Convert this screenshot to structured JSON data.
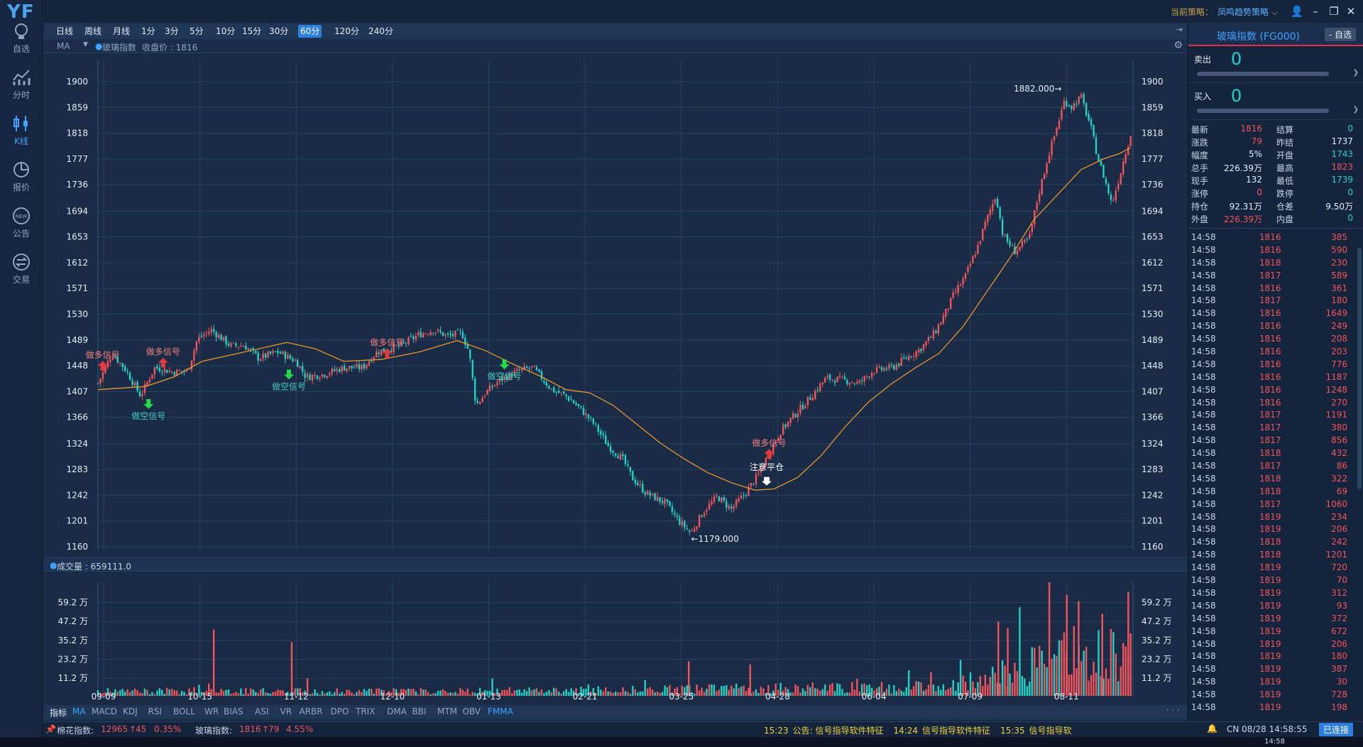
{
  "logo": "YF",
  "nav": [
    {
      "label": "自选",
      "icon": "lightbulb-icon"
    },
    {
      "label": "分时",
      "icon": "line-chart-icon"
    },
    {
      "label": "K线",
      "icon": "candlestick-icon",
      "active": true
    },
    {
      "label": "报价",
      "icon": "pie-chart-icon"
    },
    {
      "label": "公告",
      "icon": "new-badge-icon"
    },
    {
      "label": "交易",
      "icon": "exchange-icon"
    }
  ],
  "topbar": {
    "strategy_label": "当前策略：",
    "strategy_value": "凤鸣趋势策略"
  },
  "periods": [
    "日线",
    "周线",
    "月线",
    "1分",
    "3分",
    "5分",
    "10分",
    "15分",
    "30分",
    "60分",
    "120分",
    "240分"
  ],
  "selected_period": "60分",
  "subbar": {
    "indicator": "MA",
    "series": "玻璃指数",
    "close_label": "收盘价 : 1816"
  },
  "chart_data": [
    {
      "type": "candlestick",
      "series": "玻璃指数 60分K线",
      "ylim": [
        1160,
        1900
      ],
      "yticks": [
        1900,
        1859,
        1818,
        1777,
        1736,
        1694,
        1653,
        1612,
        1571,
        1530,
        1489,
        1448,
        1407,
        1366,
        1324,
        1283,
        1242,
        1201,
        1160
      ],
      "xticks": [
        "09-09",
        "10-15",
        "11-12",
        "12-10",
        "01-13",
        "02-21",
        "03-25",
        "04-28",
        "06-04",
        "07-09",
        "08-11"
      ],
      "close_path": [
        [
          0,
          1420
        ],
        [
          0.3,
          1468
        ],
        [
          0.6,
          1440
        ],
        [
          0.9,
          1400
        ],
        [
          1.2,
          1445
        ],
        [
          1.6,
          1438
        ],
        [
          1.9,
          1440
        ],
        [
          2.1,
          1490
        ],
        [
          2.4,
          1505
        ],
        [
          2.8,
          1480
        ],
        [
          3.1,
          1480
        ],
        [
          3.4,
          1460
        ],
        [
          3.8,
          1470
        ],
        [
          4.2,
          1455
        ],
        [
          4.4,
          1430
        ],
        [
          4.8,
          1435
        ],
        [
          5.2,
          1445
        ],
        [
          5.6,
          1445
        ],
        [
          5.9,
          1470
        ],
        [
          6.4,
          1480
        ],
        [
          6.8,
          1498
        ],
        [
          7.1,
          1505
        ],
        [
          7.4,
          1495
        ],
        [
          7.7,
          1500
        ],
        [
          7.85,
          1470
        ],
        [
          8.0,
          1385
        ],
        [
          8.2,
          1405
        ],
        [
          8.5,
          1425
        ],
        [
          8.9,
          1440
        ],
        [
          9.2,
          1445
        ],
        [
          9.6,
          1410
        ],
        [
          9.9,
          1400
        ],
        [
          10.2,
          1380
        ],
        [
          10.5,
          1355
        ],
        [
          10.8,
          1320
        ],
        [
          11.1,
          1300
        ],
        [
          11.3,
          1270
        ],
        [
          11.6,
          1245
        ],
        [
          12.0,
          1230
        ],
        [
          12.3,
          1200
        ],
        [
          12.55,
          1182
        ],
        [
          12.8,
          1215
        ],
        [
          13.1,
          1240
        ],
        [
          13.4,
          1220
        ],
        [
          13.7,
          1245
        ],
        [
          14.0,
          1278
        ],
        [
          14.2,
          1310
        ],
        [
          14.45,
          1345
        ],
        [
          14.8,
          1375
        ],
        [
          15.1,
          1400
        ],
        [
          15.4,
          1428
        ],
        [
          15.8,
          1425
        ],
        [
          16.1,
          1420
        ],
        [
          16.4,
          1440
        ],
        [
          16.8,
          1445
        ],
        [
          17.1,
          1460
        ],
        [
          17.4,
          1475
        ],
        [
          17.7,
          1500
        ],
        [
          17.95,
          1535
        ],
        [
          18.1,
          1560
        ],
        [
          18.35,
          1590
        ],
        [
          18.6,
          1635
        ],
        [
          18.8,
          1680
        ],
        [
          19.0,
          1720
        ],
        [
          19.15,
          1655
        ],
        [
          19.4,
          1630
        ],
        [
          19.7,
          1650
        ],
        [
          19.9,
          1720
        ],
        [
          20.1,
          1780
        ],
        [
          20.3,
          1830
        ],
        [
          20.45,
          1870
        ],
        [
          20.6,
          1860
        ],
        [
          20.8,
          1876
        ],
        [
          21.0,
          1830
        ],
        [
          21.15,
          1780
        ],
        [
          21.3,
          1745
        ],
        [
          21.45,
          1705
        ],
        [
          21.6,
          1745
        ],
        [
          21.75,
          1790
        ],
        [
          21.85,
          1816
        ]
      ],
      "ma_path": [
        [
          0,
          1410
        ],
        [
          1.0,
          1415
        ],
        [
          1.6,
          1430
        ],
        [
          2.2,
          1455
        ],
        [
          3.1,
          1470
        ],
        [
          4.0,
          1485
        ],
        [
          4.6,
          1475
        ],
        [
          5.2,
          1455
        ],
        [
          6.0,
          1458
        ],
        [
          6.8,
          1470
        ],
        [
          7.6,
          1488
        ],
        [
          8.2,
          1472
        ],
        [
          8.8,
          1450
        ],
        [
          9.4,
          1430
        ],
        [
          9.9,
          1410
        ],
        [
          10.4,
          1405
        ],
        [
          10.9,
          1385
        ],
        [
          11.4,
          1355
        ],
        [
          11.9,
          1325
        ],
        [
          12.4,
          1300
        ],
        [
          12.9,
          1278
        ],
        [
          13.4,
          1262
        ],
        [
          13.9,
          1250
        ],
        [
          14.3,
          1252
        ],
        [
          14.8,
          1270
        ],
        [
          15.3,
          1305
        ],
        [
          15.8,
          1350
        ],
        [
          16.3,
          1390
        ],
        [
          16.8,
          1420
        ],
        [
          17.3,
          1445
        ],
        [
          17.8,
          1468
        ],
        [
          18.3,
          1510
        ],
        [
          18.8,
          1565
        ],
        [
          19.3,
          1620
        ],
        [
          19.8,
          1680
        ],
        [
          20.3,
          1720
        ],
        [
          20.8,
          1760
        ],
        [
          21.3,
          1778
        ],
        [
          21.6,
          1785
        ],
        [
          21.85,
          1795
        ]
      ],
      "annotations": [
        {
          "text": "1882.000→",
          "x": 20.45,
          "y": 1882
        },
        {
          "text": "←1179.000",
          "x": 12.55,
          "y": 1179
        },
        {
          "text": "注意平仓",
          "x": 14.15,
          "y": 1280,
          "color": "white"
        }
      ],
      "signals": [
        {
          "text": "做多信号",
          "x": 0.1,
          "y": 1440,
          "dir": "long"
        },
        {
          "text": "做空信号",
          "x": 1.07,
          "y": 1395,
          "dir": "short"
        },
        {
          "text": "做多信号",
          "x": 1.38,
          "y": 1445,
          "dir": "long"
        },
        {
          "text": "做空信号",
          "x": 4.04,
          "y": 1442,
          "dir": "short"
        },
        {
          "text": "做多信号",
          "x": 6.12,
          "y": 1460,
          "dir": "long"
        },
        {
          "text": "做空信号",
          "x": 8.6,
          "y": 1458,
          "dir": "short"
        },
        {
          "text": "做多信号",
          "x": 14.2,
          "y": 1300,
          "dir": "long"
        }
      ]
    },
    {
      "type": "bar",
      "series": "成交量",
      "title": "成交量 : 659111.0",
      "ytick_labels": [
        "59.2 万",
        "47.2 万",
        "35.2 万",
        "23.2 万",
        "11.2 万"
      ],
      "yticks": [
        59.2,
        47.2,
        35.2,
        23.2,
        11.2
      ],
      "ylim": [
        0,
        72
      ],
      "level_path": [
        [
          0,
          3
        ],
        [
          2,
          3
        ],
        [
          2.3,
          6
        ],
        [
          2.6,
          3
        ],
        [
          7,
          3
        ],
        [
          12,
          4
        ],
        [
          14,
          5
        ],
        [
          16,
          5
        ],
        [
          18,
          6
        ],
        [
          19,
          14
        ],
        [
          20,
          20
        ],
        [
          20.5,
          28
        ],
        [
          21,
          24
        ],
        [
          21.85,
          28
        ]
      ],
      "spikes": [
        [
          2.45,
          42
        ],
        [
          4.1,
          34
        ],
        [
          12.5,
          22
        ],
        [
          13.8,
          20
        ],
        [
          19.05,
          47
        ],
        [
          19.25,
          43
        ],
        [
          20.5,
          64
        ],
        [
          20.75,
          60
        ],
        [
          21.25,
          52
        ],
        [
          21.8,
          66
        ]
      ]
    }
  ],
  "volume_header": "成交量 : 659111.0",
  "indicators": [
    "指标",
    "MA",
    "MACD",
    "KDJ",
    "RSI",
    "BOLL",
    "WR",
    "BIAS",
    "ASI",
    "VR",
    "ARBR",
    "DPO",
    "TRIX",
    "DMA",
    "BBI",
    "MTM",
    "OBV",
    "FMMA"
  ],
  "selected_indicators": [
    "MA",
    "FMMA"
  ],
  "status": {
    "idx1_name": "棉花指数:",
    "idx1_val": "12965",
    "idx1_chg": "45",
    "idx1_pct": "0.35%",
    "idx2_name": "玻璃指数:",
    "idx2_val": "1816",
    "idx2_chg": "79",
    "idx2_pct": "4.55%",
    "news": [
      {
        "time": "15:23",
        "text": "公告: 信号指导软件特征"
      },
      {
        "time": "14:24",
        "text": "信号指导软件特征"
      },
      {
        "time": "15:35",
        "text": "信号指导软"
      }
    ],
    "clock": "CN 08/28 14:58:55",
    "conn": "已连接"
  },
  "panel": {
    "title": "玻璃指数 (FG000)",
    "fav": "- 自选",
    "sell_label": "卖出",
    "sell_val": "0",
    "buy_label": "买入",
    "buy_val": "0",
    "quote": [
      [
        "最新",
        "1816",
        "结算",
        "0"
      ],
      [
        "涨跌",
        "79",
        "昨结",
        "1737"
      ],
      [
        "幅度",
        "5%",
        "开盘",
        "1743"
      ],
      [
        "总手",
        "226.39万",
        "最高",
        "1823"
      ],
      [
        "现手",
        "132",
        "最低",
        "1739"
      ],
      [
        "涨停",
        "0",
        "跌停",
        "0"
      ],
      [
        "持仓",
        "92.31万",
        "仓差",
        "9.50万"
      ],
      [
        "外盘",
        "226.39万",
        "内盘",
        "0"
      ]
    ],
    "ticks": [
      [
        "14:58",
        "1816",
        "385"
      ],
      [
        "14:58",
        "1816",
        "590"
      ],
      [
        "14:58",
        "1818",
        "230"
      ],
      [
        "14:58",
        "1817",
        "589"
      ],
      [
        "14:58",
        "1816",
        "361"
      ],
      [
        "14:58",
        "1817",
        "180"
      ],
      [
        "14:58",
        "1816",
        "1649"
      ],
      [
        "14:58",
        "1816",
        "249"
      ],
      [
        "14:58",
        "1816",
        "208"
      ],
      [
        "14:58",
        "1816",
        "203"
      ],
      [
        "14:58",
        "1816",
        "776"
      ],
      [
        "14:58",
        "1816",
        "1187"
      ],
      [
        "14:58",
        "1816",
        "1248"
      ],
      [
        "14:58",
        "1816",
        "270"
      ],
      [
        "14:58",
        "1817",
        "1191"
      ],
      [
        "14:58",
        "1817",
        "380"
      ],
      [
        "14:58",
        "1817",
        "856"
      ],
      [
        "14:58",
        "1818",
        "432"
      ],
      [
        "14:58",
        "1817",
        "86"
      ],
      [
        "14:58",
        "1818",
        "322"
      ],
      [
        "14:58",
        "1818",
        "69"
      ],
      [
        "14:58",
        "1817",
        "1060"
      ],
      [
        "14:58",
        "1819",
        "234"
      ],
      [
        "14:58",
        "1819",
        "206"
      ],
      [
        "14:58",
        "1818",
        "242"
      ],
      [
        "14:58",
        "1818",
        "1201"
      ],
      [
        "14:58",
        "1819",
        "720"
      ],
      [
        "14:58",
        "1819",
        "70"
      ],
      [
        "14:58",
        "1819",
        "312"
      ],
      [
        "14:58",
        "1819",
        "93"
      ],
      [
        "14:58",
        "1819",
        "372"
      ],
      [
        "14:58",
        "1819",
        "672"
      ],
      [
        "14:58",
        "1819",
        "206"
      ],
      [
        "14:58",
        "1819",
        "180"
      ],
      [
        "14:58",
        "1819",
        "387"
      ],
      [
        "14:58",
        "1819",
        "30"
      ],
      [
        "14:58",
        "1819",
        "728"
      ],
      [
        "14:58",
        "1819",
        "198"
      ]
    ]
  },
  "taskbar_clock": "14:58",
  "colors": {
    "up": "#f2545b",
    "down": "#1fd3c6",
    "ma": "#e8962e",
    "grid": "#2a4064",
    "axis_text": "#e6edf6",
    "bg": "#1a2b45"
  }
}
